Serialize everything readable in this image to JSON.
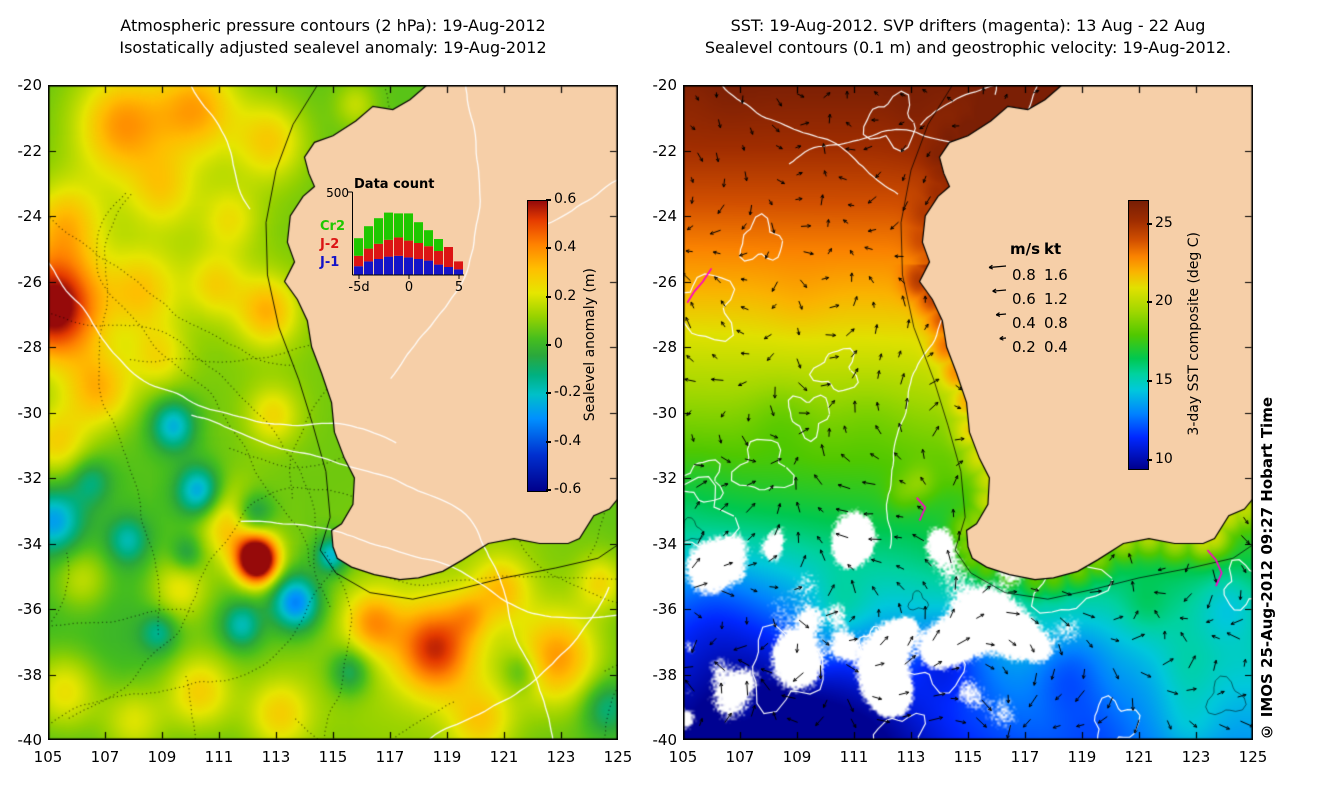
{
  "page": {
    "background": "#ffffff"
  },
  "chart_data": [
    {
      "id": "sealevel-anomaly-panel",
      "type": "heatmap",
      "title_lines": [
        "Atmospheric pressure contours (2 hPa): 19-Aug-2012",
        "Isostatically adjusted sealevel anomaly: 19-Aug-2012"
      ],
      "x_ticks": [
        "105",
        "107",
        "109",
        "111",
        "113",
        "115",
        "117",
        "119",
        "121",
        "123",
        "125"
      ],
      "y_ticks": [
        "-20",
        "-22",
        "-24",
        "-26",
        "-28",
        "-30",
        "-32",
        "-34",
        "-36",
        "-38",
        "-40"
      ],
      "xlim": [
        105,
        125
      ],
      "ylim": [
        -40,
        -20
      ],
      "land_color": "#f6cfa8",
      "colorbar": {
        "label": "Sealevel anomaly (m)",
        "ticks": [
          "0.6",
          "0.4",
          "0.2",
          "0",
          "-0.2",
          "-0.4",
          "-0.6"
        ],
        "vmin": -0.6,
        "vmax": 0.6,
        "stops": [
          [
            -0.6,
            "#00008b"
          ],
          [
            -0.45,
            "#0030d0"
          ],
          [
            -0.3,
            "#0090ff"
          ],
          [
            -0.2,
            "#00c0c8"
          ],
          [
            -0.12,
            "#00b080"
          ],
          [
            -0.04,
            "#2aa83c"
          ],
          [
            0.03,
            "#46be1e"
          ],
          [
            0.12,
            "#96d200"
          ],
          [
            0.22,
            "#e6e600"
          ],
          [
            0.32,
            "#ffbe00"
          ],
          [
            0.42,
            "#ff8200"
          ],
          [
            0.52,
            "#e63c00"
          ],
          [
            0.6,
            "#960a0a"
          ]
        ]
      },
      "inset_histogram": {
        "title": "Data count",
        "y_axis_tick": "500",
        "y_max": 500,
        "x_tick_labels": [
          "-5d",
          "0",
          "5"
        ],
        "days": [
          -5,
          -4,
          -3,
          -2,
          -1,
          0,
          1,
          2,
          3,
          4,
          5
        ],
        "stack_order_bottom_to_top": [
          "J-1",
          "J-2",
          "Cr2"
        ],
        "series": [
          {
            "name": "Cr2",
            "color": "#1ec800",
            "values": [
              110,
              140,
              160,
              170,
              150,
              170,
              130,
              100,
              75,
              0,
              0
            ]
          },
          {
            "name": "J-2",
            "color": "#dc1414",
            "values": [
              65,
              80,
              95,
              105,
              115,
              105,
              100,
              90,
              85,
              125,
              50
            ]
          },
          {
            "name": "J-1",
            "color": "#1414c8",
            "values": [
              55,
              85,
              100,
              115,
              120,
              110,
              100,
              90,
              65,
              50,
              35
            ]
          }
        ]
      }
    },
    {
      "id": "sst-panel",
      "type": "heatmap",
      "title_lines": [
        "SST: 19-Aug-2012. SVP drifters (magenta): 13 Aug - 22 Aug",
        "Sealevel contours (0.1 m) and geostrophic velocity: 19-Aug-2012."
      ],
      "x_ticks": [
        "105",
        "107",
        "109",
        "111",
        "113",
        "115",
        "117",
        "119",
        "121",
        "123",
        "125"
      ],
      "y_ticks": [
        "-20",
        "-22",
        "-24",
        "-26",
        "-28",
        "-30",
        "-32",
        "-34",
        "-36",
        "-38",
        "-40"
      ],
      "xlim": [
        105,
        125
      ],
      "ylim": [
        -40,
        -20
      ],
      "land_color": "#f6cfa8",
      "colorbar": {
        "label": "3-day SST composite (deg C)",
        "ticks": [
          "25",
          "20",
          "15",
          "10"
        ],
        "vmin": 9.5,
        "vmax": 26.5,
        "stops": [
          [
            9.5,
            "#00008c"
          ],
          [
            11.5,
            "#0028ff"
          ],
          [
            13,
            "#0082ff"
          ],
          [
            14.5,
            "#00c8dc"
          ],
          [
            15.5,
            "#00d2a0"
          ],
          [
            16.5,
            "#00c850"
          ],
          [
            18,
            "#50c800"
          ],
          [
            19.5,
            "#a0d700"
          ],
          [
            21,
            "#e1e100"
          ],
          [
            22,
            "#fab400"
          ],
          [
            23,
            "#fa8200"
          ],
          [
            24,
            "#d25000"
          ],
          [
            25.2,
            "#a02d00"
          ],
          [
            26.5,
            "#781e05"
          ]
        ]
      },
      "velocity_legend": {
        "col_headers": [
          "m/s",
          "kt"
        ],
        "rows": [
          [
            "0.8",
            "1.6"
          ],
          [
            "0.6",
            "1.2"
          ],
          [
            "0.4",
            "0.8"
          ],
          [
            "0.2",
            "0.4"
          ]
        ]
      },
      "drifter_color": "#ff00c8",
      "watermark": "© IMOS 25-Aug-2012 09:27 Hobart Time"
    }
  ]
}
